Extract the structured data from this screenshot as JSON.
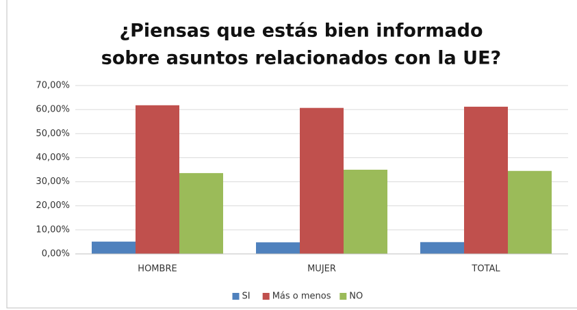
{
  "chart_data": {
    "type": "bar",
    "title": [
      "¿Piensas que estás bien informado",
      "sobre asuntos relacionados con la UE?"
    ],
    "categories": [
      "HOMBRE",
      "MUJER",
      "TOTAL"
    ],
    "series": [
      {
        "name": "SI",
        "color": "#4f81bd",
        "values": [
          5.1,
          4.8,
          4.9
        ]
      },
      {
        "name": "Más o menos",
        "color": "#c0504d",
        "values": [
          61.8,
          60.7,
          61.2
        ]
      },
      {
        "name": "NO",
        "color": "#9bbb59",
        "values": [
          33.6,
          35.0,
          34.5
        ]
      }
    ],
    "ylim": [
      0,
      70
    ],
    "yticks": [
      {
        "value": 0,
        "label": "0,00%"
      },
      {
        "value": 10,
        "label": "10,00%"
      },
      {
        "value": 20,
        "label": "20,00%"
      },
      {
        "value": 30,
        "label": "30,00%"
      },
      {
        "value": 40,
        "label": "40,00%"
      },
      {
        "value": 50,
        "label": "50,00%"
      },
      {
        "value": 60,
        "label": "60,00%"
      },
      {
        "value": 70,
        "label": "70,00%"
      }
    ],
    "grid": true,
    "legend": "bottom"
  }
}
